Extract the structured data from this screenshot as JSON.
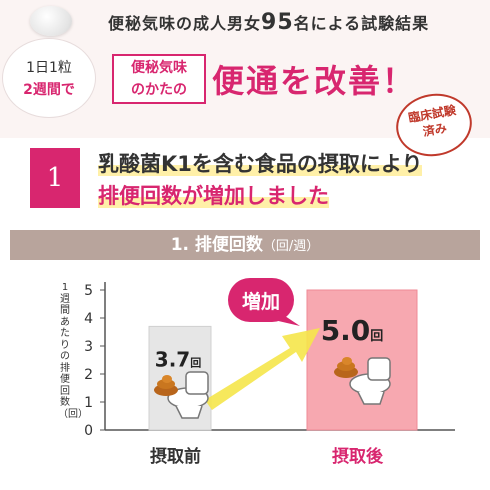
{
  "header": {
    "badge_line1": "1日1粒",
    "badge_line2": "2週間で",
    "survey_pre": "便秘気味の成人男女",
    "survey_num": "95",
    "survey_post": "名による試験結果",
    "tag_line1": "便秘気味",
    "tag_line2": "のかたの",
    "headline": "便通を改善！",
    "seal_line1": "臨床試験",
    "seal_line2": "済み"
  },
  "finding": {
    "number": "1",
    "line1": "乳酸菌K1を含む食品の摂取により",
    "line2": "排便回数が増加しました"
  },
  "panel": {
    "title": "1. 排便回数",
    "unit": "（回/週）"
  },
  "colors": {
    "accent": "#d8266f",
    "band": "#b8a49c",
    "before_bar": "#e6e6e6",
    "after_bar": "#f7a8b0",
    "arrow": "#f5e64a"
  },
  "icons": [
    "pill-icon",
    "toilet-icon",
    "poop-icon"
  ],
  "chart_data": {
    "type": "bar",
    "title": "1. 排便回数",
    "unit": "（回/週）",
    "ylabel": "1週間あたりの排便回数（回）",
    "categories": [
      "摂取前",
      "摂取後"
    ],
    "values": [
      3.7,
      5.0
    ],
    "value_labels": [
      "3.7",
      "5.0"
    ],
    "value_suffix": "回",
    "yticks": [
      "0",
      "1",
      "2",
      "3",
      "4",
      "5"
    ],
    "ylim": [
      0,
      5
    ],
    "arrow_label": "増加",
    "grid": false
  }
}
